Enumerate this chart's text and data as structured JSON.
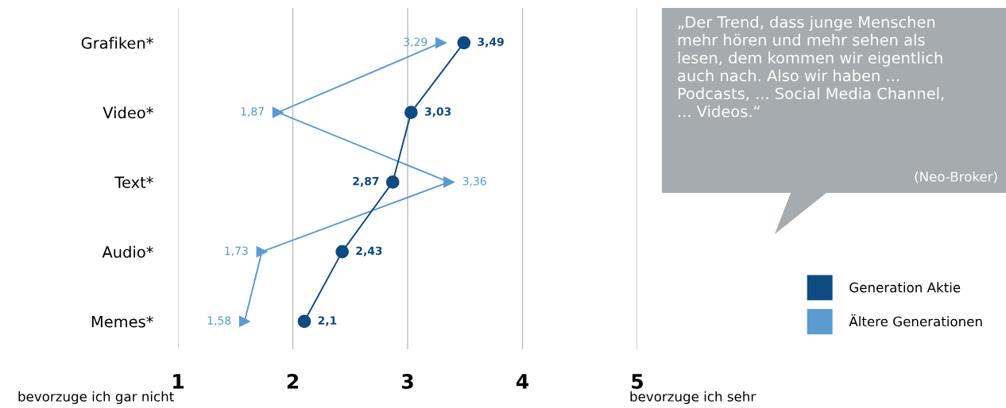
{
  "chart_data": {
    "type": "line",
    "orientation": "horizontal",
    "categories": [
      "Grafiken*",
      "Video*",
      "Text*",
      "Audio*",
      "Memes*"
    ],
    "series": [
      {
        "name": "Generation Aktie",
        "color": "#0f4a82",
        "marker": "circle",
        "values": [
          3.49,
          3.03,
          2.87,
          2.43,
          2.1
        ],
        "value_labels": [
          "3,49",
          "3,03",
          "2,87",
          "2,43",
          "2,1"
        ]
      },
      {
        "name": "Ältere Generationen",
        "color": "#5b9bd2",
        "marker": "triangle",
        "values": [
          3.29,
          1.87,
          3.36,
          1.73,
          1.58
        ],
        "value_labels": [
          "3,29",
          "1,87",
          "3,36",
          "1,73",
          "1,58"
        ]
      }
    ],
    "xlim": [
      1,
      5
    ],
    "xticks": [
      1,
      2,
      3,
      4,
      5
    ],
    "grid": "x",
    "legend": "right",
    "annotations": [
      "„Der Trend, dass junge Menschen\nmehr hören und mehr sehen als\nlesen, dem kommen wir eigentlich\nauch nach. Also wir haben ...\nPodcasts, ... Social Media Channel,\n... Videos.“",
      "(Neo-Broker)",
      "bevorzuge ich gar nicht",
      "bevorzuge ich sehr"
    ]
  }
}
